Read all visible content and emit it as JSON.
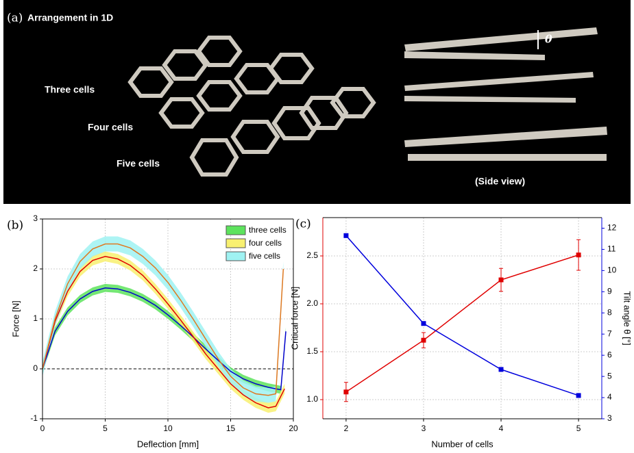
{
  "photo": {
    "label": "(a)",
    "title": "Arrangement in 1D",
    "rows": [
      "Three cells",
      "Four cells",
      "Five cells"
    ],
    "side_view": "(Side view)",
    "angle": "θ"
  },
  "chart_data": [
    {
      "type": "line",
      "panel": "(b)",
      "xlabel": "Deflection [mm]",
      "ylabel": "Force [N]",
      "xlim": [
        0,
        20
      ],
      "xticks": [
        0,
        5,
        10,
        15,
        20
      ],
      "ylim": [
        -1,
        3
      ],
      "yticks": [
        -1,
        0,
        1,
        2,
        3
      ],
      "grid": true,
      "hline": 0,
      "legend": "upper right",
      "series": [
        {
          "name": "three cells",
          "color": "#0000cc",
          "band_color": "#5de35d",
          "band": 0.08,
          "x": [
            0,
            1,
            2,
            3,
            4,
            5,
            6,
            7,
            8,
            9,
            10,
            11,
            12,
            13,
            14,
            15,
            16,
            17,
            18,
            19,
            19.4
          ],
          "values": [
            0,
            0.75,
            1.15,
            1.4,
            1.55,
            1.62,
            1.6,
            1.53,
            1.42,
            1.27,
            1.08,
            0.87,
            0.64,
            0.4,
            0.17,
            -0.05,
            -0.2,
            -0.3,
            -0.37,
            -0.42,
            0.75
          ]
        },
        {
          "name": "four cells",
          "color": "#e00000",
          "band_color": "#f8f070",
          "band": 0.1,
          "x": [
            0,
            1,
            2,
            3,
            4,
            5,
            6,
            7,
            8,
            9,
            10,
            11,
            12,
            13,
            14,
            15,
            16,
            17,
            18,
            18.6,
            19.3
          ],
          "values": [
            0,
            0.95,
            1.55,
            1.95,
            2.17,
            2.25,
            2.2,
            2.07,
            1.87,
            1.6,
            1.3,
            0.98,
            0.65,
            0.3,
            0,
            -0.3,
            -0.52,
            -0.68,
            -0.78,
            -0.75,
            -0.4
          ]
        },
        {
          "name": "five cells",
          "color": "#e07820",
          "band_color": "#9ff2f2",
          "band": 0.15,
          "x": [
            0,
            1,
            2,
            3,
            4,
            5,
            6,
            7,
            8,
            9,
            10,
            11,
            12,
            13,
            14,
            15,
            16,
            17,
            18,
            18.6,
            19.2
          ],
          "values": [
            0,
            1.0,
            1.7,
            2.15,
            2.4,
            2.5,
            2.5,
            2.42,
            2.25,
            2.02,
            1.73,
            1.38,
            1.0,
            0.6,
            0.2,
            -0.15,
            -0.38,
            -0.5,
            -0.53,
            -0.5,
            2.0
          ]
        }
      ]
    },
    {
      "type": "line",
      "panel": "(c)",
      "xlabel": "Number of cells",
      "ylabel": "Critical force [N]",
      "y2label": "Tilt angle θ [°]",
      "xlim": [
        1.7,
        5.3
      ],
      "xticks": [
        2,
        3,
        4,
        5
      ],
      "ylim": [
        0.8,
        2.9
      ],
      "yticks": [
        {
          "value": 1,
          "label": "1.0"
        },
        1.5,
        {
          "value": 2,
          "label": "2.0"
        },
        2.5
      ],
      "y2lim": [
        3,
        12.5
      ],
      "y2ticks": [
        3,
        4,
        5,
        6,
        7,
        8,
        9,
        10,
        11,
        12
      ],
      "grid": true,
      "series": [
        {
          "color": "#e00000",
          "x": [
            2,
            3,
            4,
            5
          ],
          "values": [
            1.08,
            1.62,
            2.25,
            2.51
          ],
          "errors": [
            0.1,
            0.08,
            0.12,
            0.16
          ]
        },
        {
          "color": "#0000dd",
          "axis": "y2",
          "x": [
            2,
            3,
            4,
            5
          ],
          "values": [
            11.65,
            7.5,
            5.33,
            4.1
          ]
        }
      ]
    }
  ]
}
